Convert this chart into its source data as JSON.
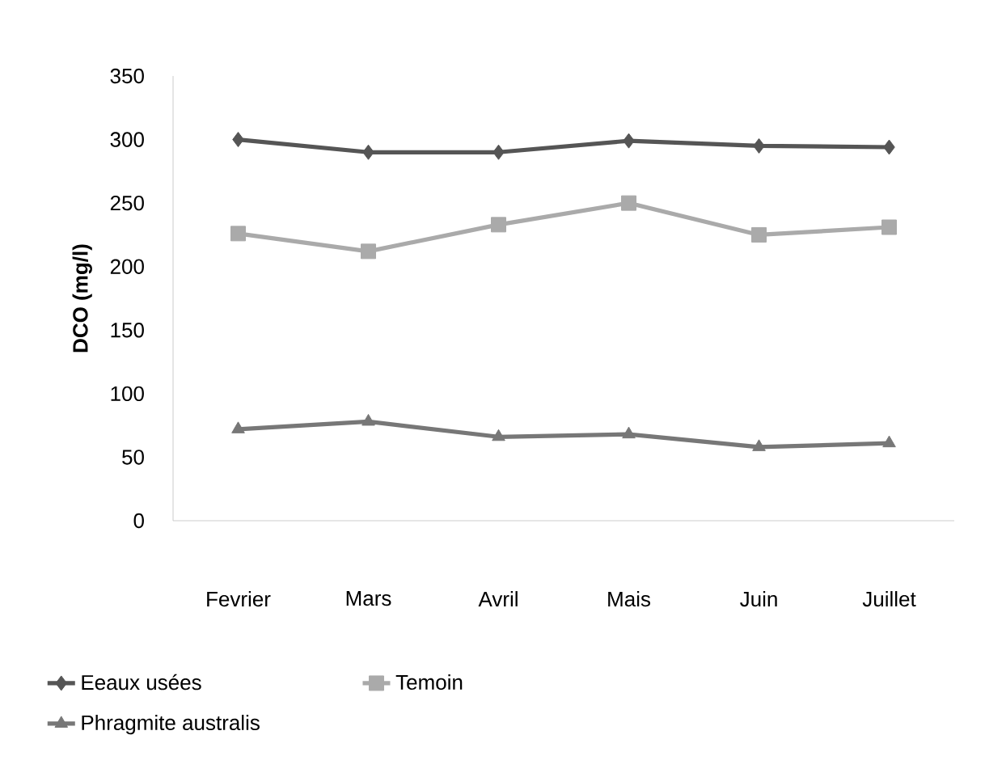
{
  "chart_data": {
    "type": "line",
    "ylabel": "DCO (mg/l)",
    "categories": [
      "Fevrier",
      "Mars",
      "Avril",
      "Mais",
      "Juin",
      "Juillet"
    ],
    "series": [
      {
        "name": "Eeaux usées",
        "color": "#555555",
        "marker": "diamond",
        "values": [
          300,
          290,
          290,
          299,
          295,
          294
        ]
      },
      {
        "name": "Temoin",
        "color": "#aaaaaa",
        "marker": "square",
        "values": [
          226,
          212,
          233,
          250,
          225,
          231
        ]
      },
      {
        "name": "Phragmite australis",
        "color": "#777777",
        "marker": "triangle",
        "values": [
          72,
          78,
          66,
          68,
          58,
          61
        ]
      }
    ],
    "ylim": [
      0,
      350
    ],
    "yticks": [
      0,
      50,
      100,
      150,
      200,
      250,
      300,
      350
    ],
    "grid": false,
    "legend": "bottom"
  }
}
